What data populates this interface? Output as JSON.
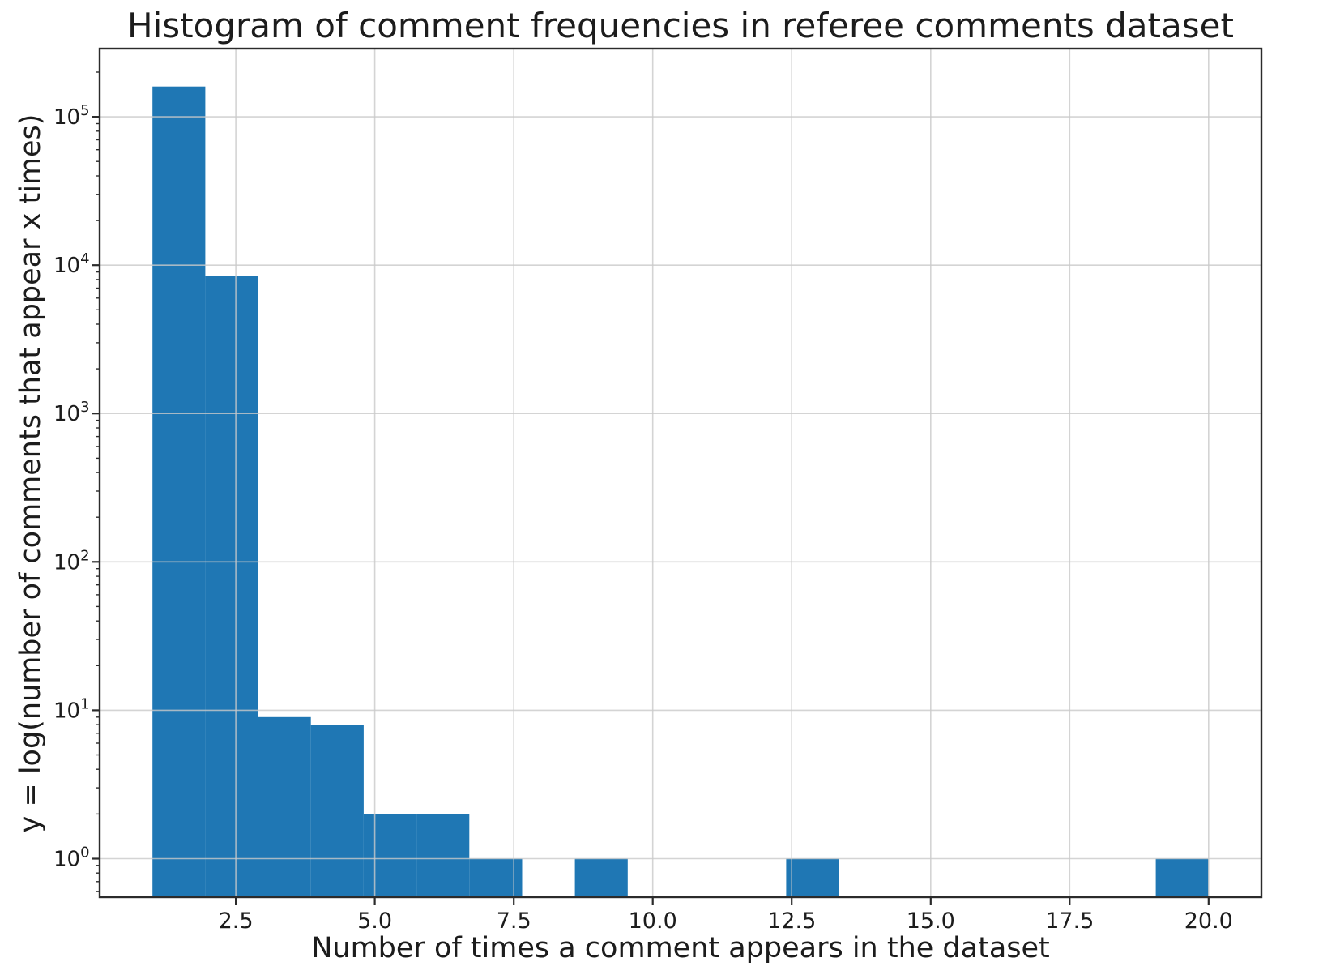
{
  "figure": {
    "background": "#ffffff"
  },
  "chart_data": {
    "type": "bar",
    "subtype": "histogram",
    "title": "Histogram of comment frequencies in referee comments dataset",
    "xlabel": "Number of times a comment appears in the dataset",
    "ylabel": "y = log(number of comments that appear x times)",
    "x_scale": "linear",
    "y_scale": "log",
    "xlim": [
      0.05,
      20.95
    ],
    "ylim": [
      0.55,
      288000
    ],
    "grid": true,
    "legend": false,
    "bar_color": "#1f77b4",
    "grid_color": "#c9c9c9",
    "spine_color": "#2b2b2b",
    "text_color": "#1c1c1c",
    "bin_edges": [
      1.0,
      1.95,
      2.9,
      3.85,
      4.8,
      5.75,
      6.7,
      7.65,
      8.6,
      9.55,
      10.5,
      11.45,
      12.4,
      13.35,
      14.3,
      15.25,
      16.2,
      17.15,
      18.1,
      19.05,
      20.0
    ],
    "counts": [
      160000,
      8500,
      9,
      8,
      2,
      2,
      1,
      0,
      1,
      0,
      0,
      0,
      1,
      0,
      0,
      0,
      0,
      0,
      0,
      1
    ],
    "x_ticks": [
      {
        "value": 2.5,
        "label": "2.5"
      },
      {
        "value": 5.0,
        "label": "5.0"
      },
      {
        "value": 7.5,
        "label": "7.5"
      },
      {
        "value": 10.0,
        "label": "10.0"
      },
      {
        "value": 12.5,
        "label": "12.5"
      },
      {
        "value": 15.0,
        "label": "15.0"
      },
      {
        "value": 17.5,
        "label": "17.5"
      },
      {
        "value": 20.0,
        "label": "20.0"
      }
    ],
    "y_ticks": [
      {
        "value": 1,
        "base": "10",
        "exp": "0"
      },
      {
        "value": 10,
        "base": "10",
        "exp": "1"
      },
      {
        "value": 100,
        "base": "10",
        "exp": "2"
      },
      {
        "value": 1000,
        "base": "10",
        "exp": "3"
      },
      {
        "value": 10000,
        "base": "10",
        "exp": "4"
      },
      {
        "value": 100000,
        "base": "10",
        "exp": "5"
      }
    ]
  }
}
